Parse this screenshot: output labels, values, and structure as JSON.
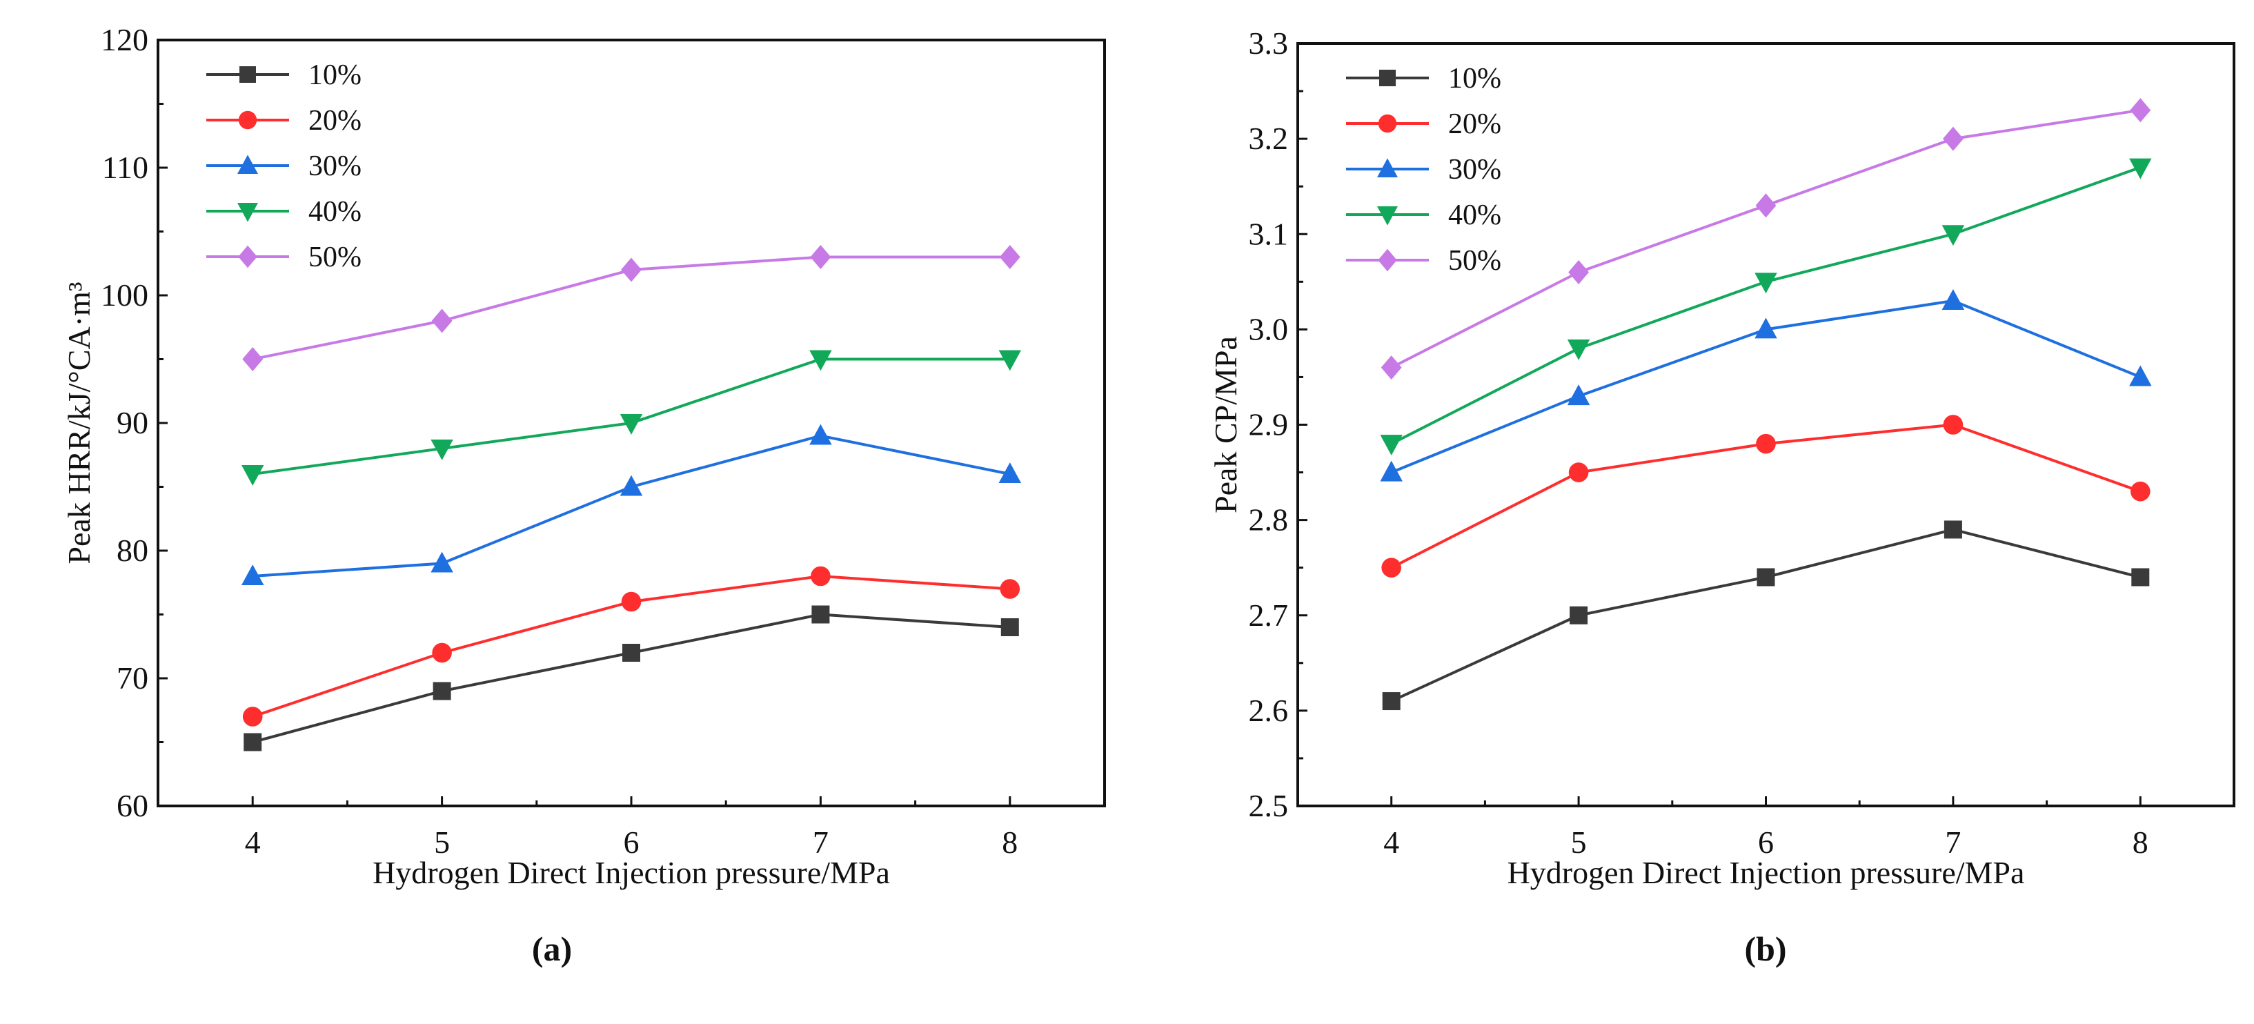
{
  "chart_data": [
    {
      "panel": "a",
      "caption": "(a)",
      "type": "line",
      "xlabel": "Hydrogen Direct Injection pressure/MPa",
      "ylabel": "Peak HRR/kJ/°CA·m³",
      "x": [
        4,
        5,
        6,
        7,
        8
      ],
      "xlim": [
        3.5,
        8.5
      ],
      "ylim": [
        60,
        120
      ],
      "xticks": [
        "4",
        "5",
        "6",
        "7",
        "8"
      ],
      "yticks": [
        "60",
        "70",
        "80",
        "90",
        "100",
        "110",
        "120"
      ],
      "legend_position": "top-left",
      "grid": false,
      "series": [
        {
          "name": "10%",
          "color": "#3a3a3a",
          "marker": "square",
          "values": [
            65,
            69,
            72,
            75,
            74
          ]
        },
        {
          "name": "20%",
          "color": "#ff2e2e",
          "marker": "circle",
          "values": [
            67,
            72,
            76,
            78,
            77
          ]
        },
        {
          "name": "30%",
          "color": "#1e6fe0",
          "marker": "triangle-up",
          "values": [
            78,
            79,
            85,
            89,
            86
          ]
        },
        {
          "name": "40%",
          "color": "#12a85a",
          "marker": "triangle-down",
          "values": [
            86,
            88,
            90,
            95,
            95
          ]
        },
        {
          "name": "50%",
          "color": "#c77ae6",
          "marker": "diamond",
          "values": [
            95,
            98,
            102,
            103,
            103
          ]
        }
      ]
    },
    {
      "panel": "b",
      "caption": "(b)",
      "type": "line",
      "xlabel": "Hydrogen Direct Injection pressure/MPa",
      "ylabel": "Peak CP/MPa",
      "x": [
        4,
        5,
        6,
        7,
        8
      ],
      "xlim": [
        3.5,
        8.5
      ],
      "ylim": [
        2.5,
        3.3
      ],
      "xticks": [
        "4",
        "5",
        "6",
        "7",
        "8"
      ],
      "yticks": [
        "2.5",
        "2.6",
        "2.7",
        "2.8",
        "2.9",
        "3.0",
        "3.1",
        "3.2",
        "3.3"
      ],
      "legend_position": "top-left",
      "grid": false,
      "series": [
        {
          "name": "10%",
          "color": "#3a3a3a",
          "marker": "square",
          "values": [
            2.61,
            2.7,
            2.74,
            2.79,
            2.74
          ]
        },
        {
          "name": "20%",
          "color": "#ff2e2e",
          "marker": "circle",
          "values": [
            2.75,
            2.85,
            2.88,
            2.9,
            2.83
          ]
        },
        {
          "name": "30%",
          "color": "#1e6fe0",
          "marker": "triangle-up",
          "values": [
            2.85,
            2.93,
            3.0,
            3.03,
            2.95
          ]
        },
        {
          "name": "40%",
          "color": "#12a85a",
          "marker": "triangle-down",
          "values": [
            2.88,
            2.98,
            3.05,
            3.1,
            3.17
          ]
        },
        {
          "name": "50%",
          "color": "#c77ae6",
          "marker": "diamond",
          "values": [
            2.96,
            3.06,
            3.13,
            3.2,
            3.23
          ]
        }
      ]
    }
  ]
}
